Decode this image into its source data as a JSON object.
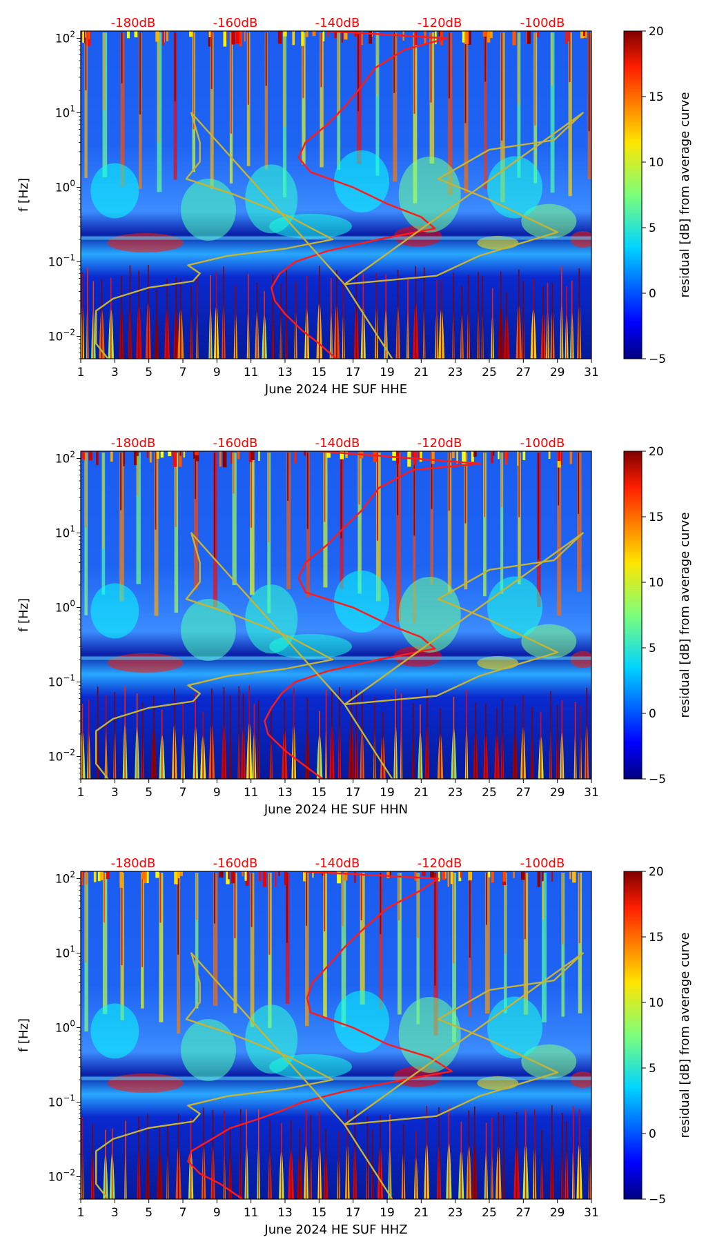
{
  "figure_title": "",
  "colors": {
    "psd_curve": "#ff1a1a",
    "reference_curve": "#c8b432",
    "db_label": "#ff0000"
  },
  "chart_data": [
    {
      "type": "heatmap",
      "xlabel": "June 2024 HE SUF  HHE",
      "ylabel": "f [Hz]",
      "x_ticks": [
        "1",
        "3",
        "5",
        "7",
        "9",
        "11",
        "13",
        "15",
        "17",
        "19",
        "21",
        "23",
        "25",
        "27",
        "29",
        "31"
      ],
      "xlim": [
        1,
        31
      ],
      "y_ticks": [
        "10^-2",
        "10^-1",
        "10^0",
        "10^1",
        "10^2"
      ],
      "ylim": [
        0.005,
        125
      ],
      "y_scale": "log",
      "top_db_labels": [
        "-180dB",
        "-160dB",
        "-140dB",
        "-120dB",
        "-100dB"
      ],
      "colorbar": {
        "label": "residual [dB] from average curve",
        "ticks": [
          "20",
          "15",
          "10",
          "5",
          "0",
          "−5"
        ],
        "range": [
          -5,
          20
        ],
        "colormap": "jet"
      },
      "series": [
        {
          "values": [
            [
              16.0,
              0.005
            ],
            [
              15.0,
              0.008
            ],
            [
              14.0,
              0.012
            ],
            [
              13.0,
              0.02
            ],
            [
              12.4,
              0.03
            ],
            [
              12.2,
              0.045
            ],
            [
              12.7,
              0.07
            ],
            [
              13.6,
              0.1
            ],
            [
              15.5,
              0.14
            ],
            [
              18.5,
              0.2
            ],
            [
              21.8,
              0.28
            ],
            [
              21.0,
              0.4
            ],
            [
              19.0,
              0.6
            ],
            [
              17.0,
              1.0
            ],
            [
              14.5,
              1.6
            ],
            [
              13.8,
              2.5
            ],
            [
              14.2,
              4
            ],
            [
              15.5,
              7
            ],
            [
              16.5,
              12
            ],
            [
              17.3,
              20
            ],
            [
              18.3,
              40
            ],
            [
              20.0,
              70
            ],
            [
              22.5,
              100
            ],
            [
              15.5,
              125
            ]
          ]
        },
        {
          "values": [
            [
              2.6,
              0.005
            ],
            [
              1.9,
              0.008
            ],
            [
              1.9,
              0.013
            ],
            [
              1.9,
              0.022
            ],
            [
              2.9,
              0.032
            ],
            [
              5.0,
              0.045
            ],
            [
              7.6,
              0.055
            ],
            [
              8.0,
              0.07
            ],
            [
              7.3,
              0.09
            ],
            [
              9.6,
              0.12
            ],
            [
              13.0,
              0.15
            ],
            [
              15.8,
              0.2
            ],
            [
              13.3,
              0.4
            ],
            [
              10.0,
              0.8
            ],
            [
              7.2,
              1.3
            ],
            [
              8.0,
              2.2
            ],
            [
              8.0,
              4
            ],
            [
              7.5,
              10
            ],
            [
              16.5,
              0.05
            ],
            [
              21.9,
              0.065
            ],
            [
              24.4,
              0.12
            ],
            [
              29.0,
              0.25
            ],
            [
              24.9,
              0.7
            ],
            [
              22.0,
              1.3
            ],
            [
              25.0,
              3.2
            ],
            [
              28.8,
              4.3
            ],
            [
              30.5,
              10
            ],
            [
              16.5,
              0.05
            ],
            [
              19.3,
              0.005
            ]
          ]
        }
      ]
    },
    {
      "type": "heatmap",
      "xlabel": "June 2024 HE SUF  HHN",
      "ylabel": "f [Hz]",
      "x_ticks": [
        "1",
        "3",
        "5",
        "7",
        "9",
        "11",
        "13",
        "15",
        "17",
        "19",
        "21",
        "23",
        "25",
        "27",
        "29",
        "31"
      ],
      "xlim": [
        1,
        31
      ],
      "y_ticks": [
        "10^-2",
        "10^-1",
        "10^0",
        "10^1",
        "10^2"
      ],
      "ylim": [
        0.005,
        125
      ],
      "y_scale": "log",
      "top_db_labels": [
        "-180dB",
        "-160dB",
        "-140dB",
        "-120dB",
        "-100dB"
      ],
      "colorbar": {
        "label": "residual [dB] from average curve",
        "ticks": [
          "20",
          "15",
          "10",
          "5",
          "0",
          "−5"
        ],
        "range": [
          -5,
          20
        ],
        "colormap": "jet"
      },
      "series": [
        {
          "values": [
            [
              15.2,
              0.005
            ],
            [
              14.0,
              0.008
            ],
            [
              13.0,
              0.012
            ],
            [
              12.0,
              0.02
            ],
            [
              11.8,
              0.03
            ],
            [
              12.2,
              0.045
            ],
            [
              12.8,
              0.07
            ],
            [
              13.6,
              0.1
            ],
            [
              15.5,
              0.14
            ],
            [
              18.5,
              0.2
            ],
            [
              21.8,
              0.28
            ],
            [
              21.0,
              0.4
            ],
            [
              19.0,
              0.6
            ],
            [
              17.0,
              1.0
            ],
            [
              14.2,
              1.6
            ],
            [
              13.8,
              2.5
            ],
            [
              14.2,
              4
            ],
            [
              15.5,
              7
            ],
            [
              16.5,
              12
            ],
            [
              17.5,
              20
            ],
            [
              18.5,
              40
            ],
            [
              20.5,
              70
            ],
            [
              24.5,
              85
            ],
            [
              15.0,
              125
            ]
          ]
        },
        {
          "values": [
            [
              2.6,
              0.005
            ],
            [
              1.9,
              0.008
            ],
            [
              1.9,
              0.013
            ],
            [
              1.9,
              0.022
            ],
            [
              2.9,
              0.032
            ],
            [
              5.0,
              0.045
            ],
            [
              7.6,
              0.055
            ],
            [
              8.0,
              0.07
            ],
            [
              7.3,
              0.09
            ],
            [
              9.6,
              0.12
            ],
            [
              13.0,
              0.15
            ],
            [
              15.8,
              0.2
            ],
            [
              13.3,
              0.4
            ],
            [
              10.0,
              0.8
            ],
            [
              7.2,
              1.3
            ],
            [
              8.0,
              2.2
            ],
            [
              8.0,
              4
            ],
            [
              7.5,
              10
            ],
            [
              16.5,
              0.05
            ],
            [
              21.9,
              0.065
            ],
            [
              24.4,
              0.12
            ],
            [
              29.0,
              0.25
            ],
            [
              24.9,
              0.7
            ],
            [
              22.0,
              1.3
            ],
            [
              25.0,
              3.2
            ],
            [
              28.8,
              4.3
            ],
            [
              30.5,
              10
            ],
            [
              16.5,
              0.05
            ],
            [
              19.3,
              0.005
            ]
          ]
        }
      ]
    },
    {
      "type": "heatmap",
      "xlabel": "June 2024 HE SUF  HHZ",
      "ylabel": "f [Hz]",
      "x_ticks": [
        "1",
        "3",
        "5",
        "7",
        "9",
        "11",
        "13",
        "15",
        "17",
        "19",
        "21",
        "23",
        "25",
        "27",
        "29",
        "31"
      ],
      "xlim": [
        1,
        31
      ],
      "y_ticks": [
        "10^-2",
        "10^-1",
        "10^0",
        "10^1",
        "10^2"
      ],
      "ylim": [
        0.005,
        125
      ],
      "y_scale": "log",
      "top_db_labels": [
        "-180dB",
        "-160dB",
        "-140dB",
        "-120dB",
        "-100dB"
      ],
      "colorbar": {
        "label": "residual [dB] from average curve",
        "ticks": [
          "20",
          "15",
          "10",
          "5",
          "0",
          "−5"
        ],
        "range": [
          -5,
          20
        ],
        "colormap": "jet"
      },
      "series": [
        {
          "values": [
            [
              10.5,
              0.005
            ],
            [
              9.2,
              0.008
            ],
            [
              8.0,
              0.011
            ],
            [
              7.3,
              0.016
            ],
            [
              7.5,
              0.022
            ],
            [
              8.5,
              0.03
            ],
            [
              9.8,
              0.045
            ],
            [
              11.5,
              0.06
            ],
            [
              13.0,
              0.08
            ],
            [
              14.0,
              0.1
            ],
            [
              16.5,
              0.14
            ],
            [
              20.0,
              0.2
            ],
            [
              22.8,
              0.26
            ],
            [
              21.5,
              0.4
            ],
            [
              19.0,
              0.6
            ],
            [
              17.0,
              1.0
            ],
            [
              14.5,
              1.6
            ],
            [
              14.3,
              2.5
            ],
            [
              14.6,
              4
            ],
            [
              15.6,
              7
            ],
            [
              16.5,
              12
            ],
            [
              17.5,
              20
            ],
            [
              19.0,
              40
            ],
            [
              21.0,
              70
            ],
            [
              22.0,
              100
            ],
            [
              14.0,
              125
            ]
          ]
        },
        {
          "values": [
            [
              2.6,
              0.005
            ],
            [
              1.9,
              0.008
            ],
            [
              1.9,
              0.013
            ],
            [
              1.9,
              0.022
            ],
            [
              2.9,
              0.032
            ],
            [
              5.0,
              0.045
            ],
            [
              7.6,
              0.055
            ],
            [
              8.0,
              0.07
            ],
            [
              7.3,
              0.09
            ],
            [
              9.6,
              0.12
            ],
            [
              13.0,
              0.15
            ],
            [
              15.8,
              0.2
            ],
            [
              13.3,
              0.4
            ],
            [
              10.0,
              0.8
            ],
            [
              7.2,
              1.3
            ],
            [
              8.0,
              2.2
            ],
            [
              8.0,
              4
            ],
            [
              7.5,
              10
            ],
            [
              16.5,
              0.05
            ],
            [
              21.9,
              0.065
            ],
            [
              24.4,
              0.12
            ],
            [
              29.0,
              0.25
            ],
            [
              24.9,
              0.7
            ],
            [
              22.0,
              1.3
            ],
            [
              25.0,
              3.2
            ],
            [
              28.8,
              4.3
            ],
            [
              30.5,
              10
            ],
            [
              16.5,
              0.05
            ],
            [
              19.3,
              0.005
            ]
          ]
        }
      ]
    }
  ]
}
